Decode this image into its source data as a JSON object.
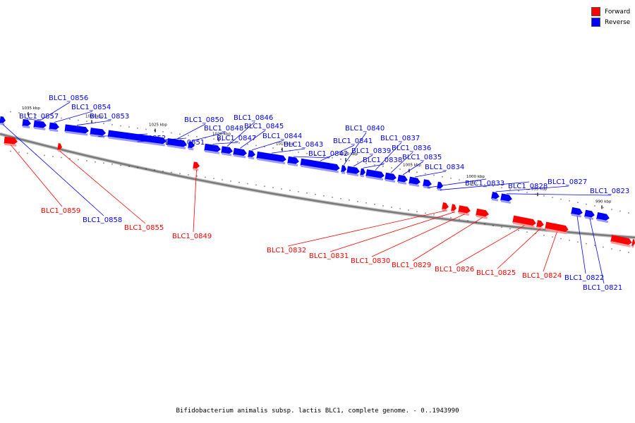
{
  "caption": "Bifidobacterium animalis subsp. lactis BLC1, complete genome. - 0..1943990",
  "legend": [
    {
      "label": "Forward",
      "color": "#ff0000"
    },
    {
      "label": "Reverse",
      "color": "#0000ff"
    }
  ],
  "colors": {
    "forward": "#ff0000",
    "reverse": "#0000ff",
    "backbone": "#7a7a7a"
  },
  "scale": {
    "unit": "kbp",
    "ticks": [
      {
        "kbp": 1035,
        "label": "1035 kbp"
      },
      {
        "kbp": 1030,
        "label": "1030 kbp"
      },
      {
        "kbp": 1025,
        "label": "1025 kbp"
      },
      {
        "kbp": 1020,
        "label": "1020 kbp"
      },
      {
        "kbp": 1015,
        "label": "1015 kbp"
      },
      {
        "kbp": 1010,
        "label": "1010 kbp"
      },
      {
        "kbp": 1005,
        "label": "1005 kbp"
      },
      {
        "kbp": 1000,
        "label": "1000 kbp"
      },
      {
        "kbp": 995,
        "label": "995 kbp"
      },
      {
        "kbp": 990,
        "label": "990 kbp"
      }
    ]
  },
  "genes": [
    {
      "name": "BLC1_0857",
      "strand": "reverse"
    },
    {
      "name": "BLC1_0856",
      "strand": "reverse"
    },
    {
      "name": "BLC1_0854",
      "strand": "reverse"
    },
    {
      "name": "BLC1_0853",
      "strand": "reverse"
    },
    {
      "name": "BLC1_0852",
      "strand": "reverse"
    },
    {
      "name": "BLC1_0851",
      "strand": "reverse"
    },
    {
      "name": "BLC1_0850",
      "strand": "reverse"
    },
    {
      "name": "BLC1_0848",
      "strand": "reverse"
    },
    {
      "name": "BLC1_0847",
      "strand": "reverse"
    },
    {
      "name": "BLC1_0846",
      "strand": "reverse"
    },
    {
      "name": "BLC1_0845",
      "strand": "reverse"
    },
    {
      "name": "BLC1_0844",
      "strand": "reverse"
    },
    {
      "name": "BLC1_0843",
      "strand": "reverse"
    },
    {
      "name": "BLC1_0842",
      "strand": "reverse"
    },
    {
      "name": "BLC1_0841",
      "strand": "reverse"
    },
    {
      "name": "BLC1_0840",
      "strand": "reverse"
    },
    {
      "name": "BLC1_0839",
      "strand": "reverse"
    },
    {
      "name": "BLC1_0838",
      "strand": "reverse"
    },
    {
      "name": "BLC1_0837",
      "strand": "reverse"
    },
    {
      "name": "BLC1_0836",
      "strand": "reverse"
    },
    {
      "name": "BLC1_0835",
      "strand": "reverse"
    },
    {
      "name": "BLC1_0834",
      "strand": "reverse"
    },
    {
      "name": "BLC1_0833",
      "strand": "reverse"
    },
    {
      "name": "BLC1_0828",
      "strand": "reverse"
    },
    {
      "name": "BLC1_0827",
      "strand": "reverse"
    },
    {
      "name": "BLC1_0823",
      "strand": "reverse"
    },
    {
      "name": "BLC1_0859",
      "strand": "forward"
    },
    {
      "name": "BLC1_0858",
      "strand": "reverse"
    },
    {
      "name": "BLC1_0855",
      "strand": "forward"
    },
    {
      "name": "BLC1_0849",
      "strand": "forward"
    },
    {
      "name": "BLC1_0832",
      "strand": "forward"
    },
    {
      "name": "BLC1_0831",
      "strand": "forward"
    },
    {
      "name": "BLC1_0830",
      "strand": "forward"
    },
    {
      "name": "BLC1_0829",
      "strand": "forward"
    },
    {
      "name": "BLC1_0826",
      "strand": "forward"
    },
    {
      "name": "BLC1_0825",
      "strand": "forward"
    },
    {
      "name": "BLC1_0824",
      "strand": "forward"
    },
    {
      "name": "BLC1_0822",
      "strand": "reverse"
    },
    {
      "name": "BLC1_0821",
      "strand": "reverse"
    }
  ]
}
